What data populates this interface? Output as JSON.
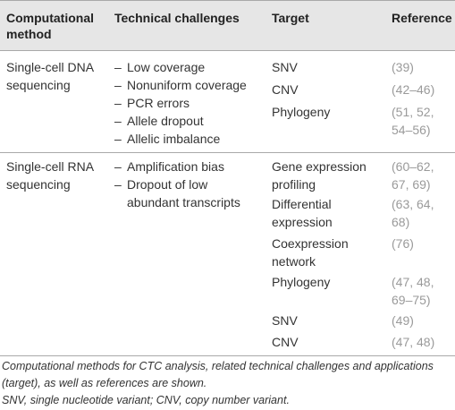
{
  "header": {
    "col1": "Computational method",
    "col2": "Technical challenges",
    "col3": "Target",
    "col4": "Reference"
  },
  "rows": [
    {
      "method": "Single-cell DNA sequencing",
      "challenges": [
        "Low coverage",
        "Nonuniform coverage",
        "PCR errors",
        "Allele dropout",
        "Allelic imbalance"
      ],
      "targets": [
        {
          "target": "SNV",
          "reference": "(39)"
        },
        {
          "target": "CNV",
          "reference": "(42–46)"
        },
        {
          "target": "Phylogeny",
          "reference": "(51, 52, 54–56)"
        }
      ]
    },
    {
      "method": "Single-cell RNA sequencing",
      "challenges": [
        "Amplification bias",
        "Dropout of low abundant transcripts"
      ],
      "targets": [
        {
          "target": "Gene expression profiling",
          "reference": "(60–62, 67, 69)"
        },
        {
          "target": "Differential expression",
          "reference": "(63, 64, 68)"
        },
        {
          "target": "Coexpression network",
          "reference": "(76)"
        },
        {
          "target": "Phylogeny",
          "reference": "(47, 48, 69–75)"
        },
        {
          "target": "SNV",
          "reference": "(49)"
        },
        {
          "target": "CNV",
          "reference": "(47, 48)"
        }
      ]
    }
  ],
  "footnotes": {
    "caption": "Computational methods for CTC analysis, related technical challenges and applications (target), as well as references are shown.",
    "abbreviations": "SNV, single nucleotide variant; CNV, copy number variant."
  },
  "colors": {
    "header_bg": "#e6e6e6",
    "rule": "#a9a9a9",
    "reference_text": "#9a9a9a"
  }
}
